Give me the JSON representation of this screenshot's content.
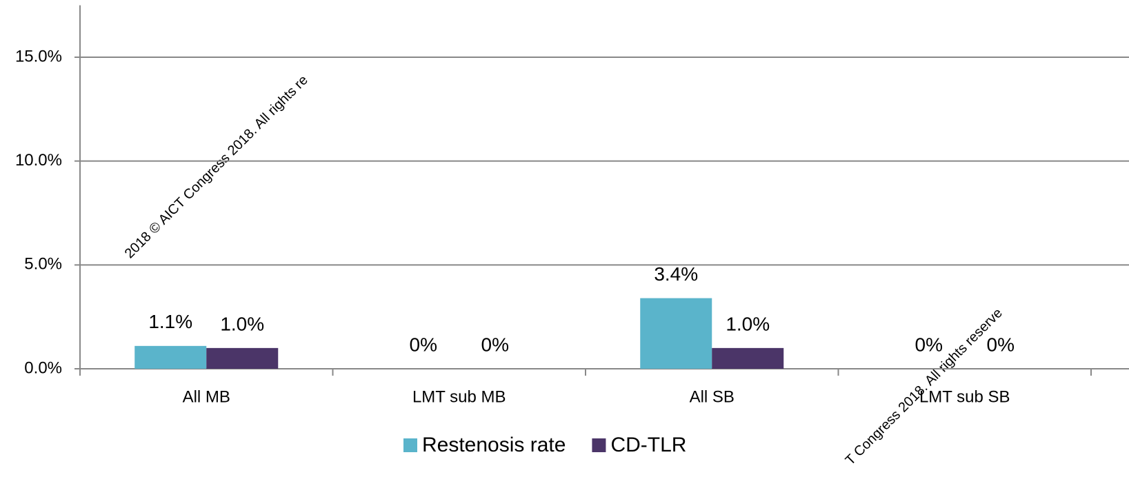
{
  "chart_data": {
    "type": "bar",
    "categories": [
      "All MB",
      "LMT sub MB",
      "All SB",
      "LMT sub SB"
    ],
    "series": [
      {
        "name": "Restenosis rate",
        "color": "#5ab4cb",
        "values": [
          1.1,
          0,
          3.4,
          0
        ],
        "value_labels": [
          "1.1%",
          "0%",
          "3.4%",
          "0%"
        ]
      },
      {
        "name": "CD-TLR",
        "color": "#4b3568",
        "values": [
          1.0,
          0,
          1.0,
          0
        ],
        "value_labels": [
          "1.0%",
          "0%",
          "1.0%",
          "0%"
        ]
      }
    ],
    "ylim": [
      0,
      17.5
    ],
    "yticks": [
      {
        "value": 0,
        "label": "0.0%"
      },
      {
        "value": 5,
        "label": "5.0%"
      },
      {
        "value": 10,
        "label": "10.0%"
      },
      {
        "value": 15,
        "label": "15.0%"
      }
    ],
    "grid": true,
    "legend": "bottom",
    "watermarks": [
      "2018 © AICT Congress 2018. All rights re",
      "T Congress 2018. All rights reserve"
    ]
  }
}
